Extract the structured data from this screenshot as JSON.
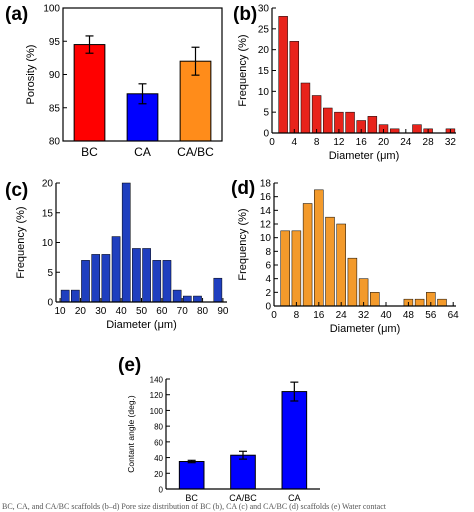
{
  "caption": "BC, CA, and CA/BC scaffolds (b–d) Pore size distribution of BC (b), CA (c) and CA/BC (d) scaffolds (e) Water contact",
  "chart_data": [
    {
      "panel": "(a)",
      "type": "bar",
      "categories": [
        "BC",
        "CA",
        "CA/BC"
      ],
      "values": [
        94.5,
        87.1,
        92.0
      ],
      "errors": [
        1.3,
        1.5,
        2.1
      ],
      "colors": [
        "#ff0000",
        "#0000ff",
        "#ff8c1a"
      ],
      "ylabel": "Porosity (%)",
      "xlabel": "",
      "ylim": [
        80,
        100
      ],
      "yticks": [
        80,
        85,
        90,
        95,
        100
      ]
    },
    {
      "panel": "(b)",
      "type": "bar",
      "x": [
        2,
        4,
        6,
        8,
        10,
        12,
        14,
        16,
        18,
        20,
        22,
        24,
        26,
        28,
        30,
        32
      ],
      "values": [
        28,
        22,
        12,
        9,
        6,
        5,
        5,
        3,
        4,
        2,
        1,
        0,
        2,
        1,
        0,
        1
      ],
      "color": "#e8231b",
      "xlabel": "Diameter (μm)",
      "ylabel": "Frequency (%)",
      "xlim": [
        0,
        33
      ],
      "ylim": [
        0,
        30
      ],
      "xticks": [
        0,
        4,
        8,
        12,
        16,
        20,
        24,
        28,
        32
      ],
      "yticks": [
        0,
        5,
        10,
        15,
        20,
        25,
        30
      ]
    },
    {
      "panel": "(c)",
      "type": "bar",
      "x": [
        12.5,
        17.5,
        22.5,
        27.5,
        32.5,
        37.5,
        42.5,
        47.5,
        52.5,
        57.5,
        62.5,
        67.5,
        72.5,
        77.5,
        82.5,
        87.5
      ],
      "values": [
        2,
        2,
        7,
        8,
        8,
        11,
        20,
        9,
        9,
        7,
        7,
        2,
        1,
        1,
        0,
        4
      ],
      "color": "#1f3fbf",
      "xlabel": "Diameter (μm)",
      "ylabel": "Frequency (%)",
      "xlim": [
        8,
        92
      ],
      "ylim": [
        0,
        20
      ],
      "xticks": [
        10,
        20,
        30,
        40,
        50,
        60,
        70,
        80,
        90
      ],
      "yticks": [
        0,
        5,
        10,
        15,
        20
      ]
    },
    {
      "panel": "(d)",
      "type": "bar",
      "x": [
        4,
        8,
        12,
        16,
        20,
        24,
        28,
        32,
        36,
        40,
        44,
        48,
        52,
        56,
        60
      ],
      "values": [
        11,
        11,
        15,
        17,
        13,
        12,
        7,
        4,
        2,
        0,
        0,
        1,
        1,
        2,
        1
      ],
      "color": "#f39a2b",
      "xlabel": "Diameter (μm)",
      "ylabel": "Frequency (%)",
      "xlim": [
        0,
        65
      ],
      "ylim": [
        0,
        18
      ],
      "xticks": [
        0,
        8,
        16,
        24,
        32,
        40,
        48,
        56,
        64
      ],
      "yticks": [
        0,
        2,
        4,
        6,
        8,
        10,
        12,
        14,
        16,
        18
      ]
    },
    {
      "panel": "(e)",
      "type": "bar",
      "categories": [
        "BC",
        "CA/BC",
        "CA"
      ],
      "values": [
        35,
        43,
        124
      ],
      "errors": [
        1.5,
        5,
        12
      ],
      "color": "#0000ff",
      "xlabel": "",
      "ylabel": "Contant angle (deg.)",
      "ylim": [
        0,
        140
      ],
      "yticks": [
        0,
        20,
        40,
        60,
        80,
        100,
        120,
        140
      ]
    }
  ]
}
